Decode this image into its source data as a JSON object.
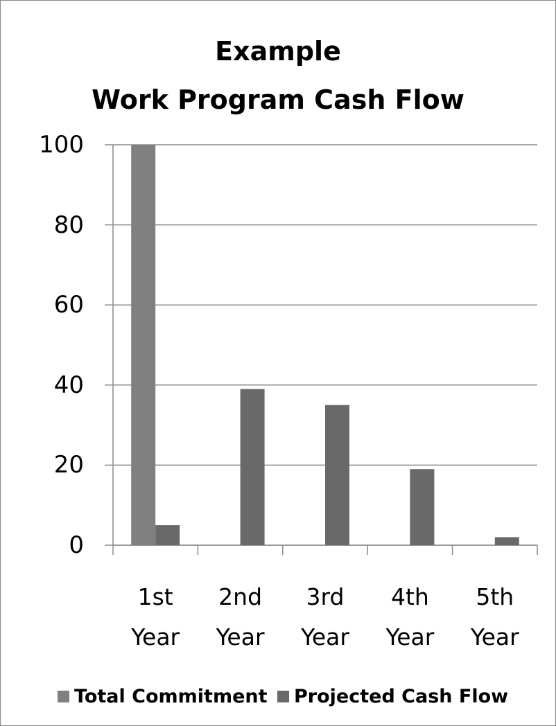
{
  "chart_data": {
    "type": "bar",
    "title": "Example\nWork Program Cash Flow",
    "categories": [
      "1st\nYear",
      "2nd\nYear",
      "3rd\nYear",
      "4th\nYear",
      "5th\nYear"
    ],
    "series": [
      {
        "name": "Total Commitment",
        "color": "#808080",
        "values": [
          100,
          null,
          null,
          null,
          null
        ]
      },
      {
        "name": "Projected Cash Flow",
        "color": "#696969",
        "values": [
          5,
          39,
          35,
          19,
          2
        ]
      }
    ],
    "ylim": [
      0,
      100
    ],
    "yticks": [
      0,
      20,
      40,
      60,
      80,
      100
    ],
    "grid": true,
    "legend": "bottom"
  }
}
